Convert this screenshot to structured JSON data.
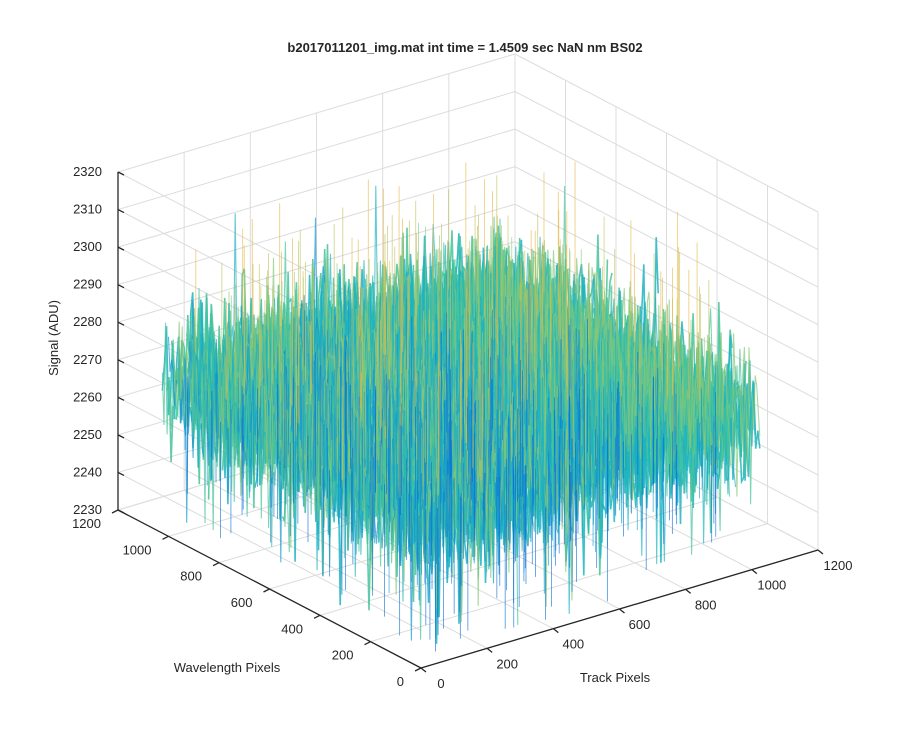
{
  "chart_data": {
    "type": "surface3d",
    "title": "b2017011201_img.mat int time = 1.4509 sec  NaN nm BS02",
    "xlabel": "Track Pixels",
    "ylabel": "Wavelength Pixels",
    "zlabel": "Signal (ADU)",
    "xlim": [
      0,
      1200
    ],
    "ylim": [
      0,
      1200
    ],
    "zlim": [
      2230,
      2320
    ],
    "x_ticks": [
      "0",
      "200",
      "400",
      "600",
      "800",
      "1000",
      "1200"
    ],
    "y_ticks": [
      "0",
      "200",
      "400",
      "600",
      "800",
      "1000",
      "1200"
    ],
    "z_ticks": [
      "2230",
      "2240",
      "2250",
      "2260",
      "2270",
      "2280",
      "2290",
      "2300",
      "2310",
      "2320"
    ],
    "surface": {
      "x_range": [
        0,
        1024
      ],
      "y_range": [
        0,
        1024
      ],
      "mean_signal": 2270,
      "noise_range": [
        2232,
        2318
      ],
      "colormap": [
        "#0a6fd6",
        "#1496d0",
        "#1fb4c0",
        "#47c39a",
        "#86c879",
        "#c2c25c",
        "#e7b847"
      ]
    },
    "grid": true
  },
  "colors": {
    "axis": "#262626",
    "grid": "#dcdcdc",
    "background": "#ffffff"
  }
}
